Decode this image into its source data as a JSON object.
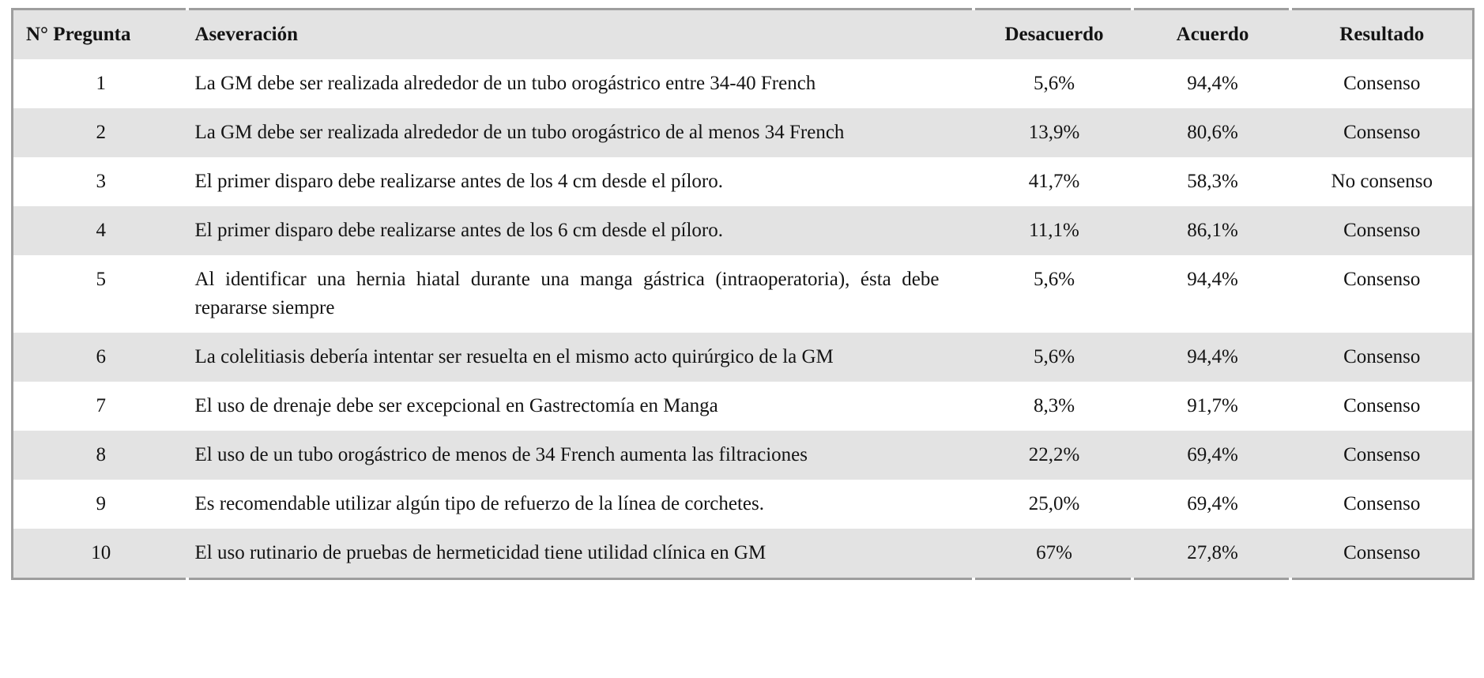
{
  "table": {
    "columns": [
      {
        "key": "num",
        "label": "N° Pregunta"
      },
      {
        "key": "statement",
        "label": "Aseveración"
      },
      {
        "key": "disagree",
        "label": "Desacuerdo"
      },
      {
        "key": "agree",
        "label": "Acuerdo"
      },
      {
        "key": "result",
        "label": "Resultado"
      }
    ],
    "rows": [
      {
        "num": "1",
        "statement": "La GM debe ser realizada alrededor de un tubo orogástrico entre 34-40 French",
        "disagree": "5,6%",
        "agree": "94,4%",
        "result": "Consenso"
      },
      {
        "num": "2",
        "statement": "La GM debe ser realizada alrededor de un tubo orogástrico de al menos 34 French",
        "disagree": "13,9%",
        "agree": "80,6%",
        "result": "Consenso"
      },
      {
        "num": "3",
        "statement": "El primer disparo debe realizarse antes de los 4 cm desde el píloro.",
        "disagree": "41,7%",
        "agree": "58,3%",
        "result": "No consenso"
      },
      {
        "num": "4",
        "statement": "El primer disparo debe realizarse antes de los 6 cm desde el píloro.",
        "disagree": "11,1%",
        "agree": "86,1%",
        "result": "Consenso"
      },
      {
        "num": "5",
        "statement": "Al identificar una hernia hiatal durante una manga gástrica (intraoperatoria), ésta debe repararse siempre",
        "disagree": "5,6%",
        "agree": "94,4%",
        "result": "Consenso"
      },
      {
        "num": "6",
        "statement": "La colelitiasis debería intentar ser resuelta en el mismo acto quirúrgico de la GM",
        "disagree": "5,6%",
        "agree": "94,4%",
        "result": "Consenso"
      },
      {
        "num": "7",
        "statement": "El uso de drenaje debe ser excepcional en Gastrectomía en Manga",
        "disagree": "8,3%",
        "agree": "91,7%",
        "result": "Consenso"
      },
      {
        "num": "8",
        "statement": "El uso de un tubo orogástrico de menos de 34 French aumenta las filtraciones",
        "disagree": "22,2%",
        "agree": "69,4%",
        "result": "Consenso"
      },
      {
        "num": "9",
        "statement": "Es recomendable utilizar algún tipo de refuerzo de la línea de corchetes.",
        "disagree": "25,0%",
        "agree": "69,4%",
        "result": "Consenso"
      },
      {
        "num": "10",
        "statement": "El uso rutinario de pruebas de hermeticidad tiene utilidad clínica en GM",
        "disagree": "67%",
        "agree": "27,8%",
        "result": "Consenso"
      }
    ],
    "colors": {
      "row_alt_bg": "#e3e3e3",
      "header_bg": "#e3e3e3",
      "border": "#9e9e9e",
      "text": "#141414"
    }
  }
}
